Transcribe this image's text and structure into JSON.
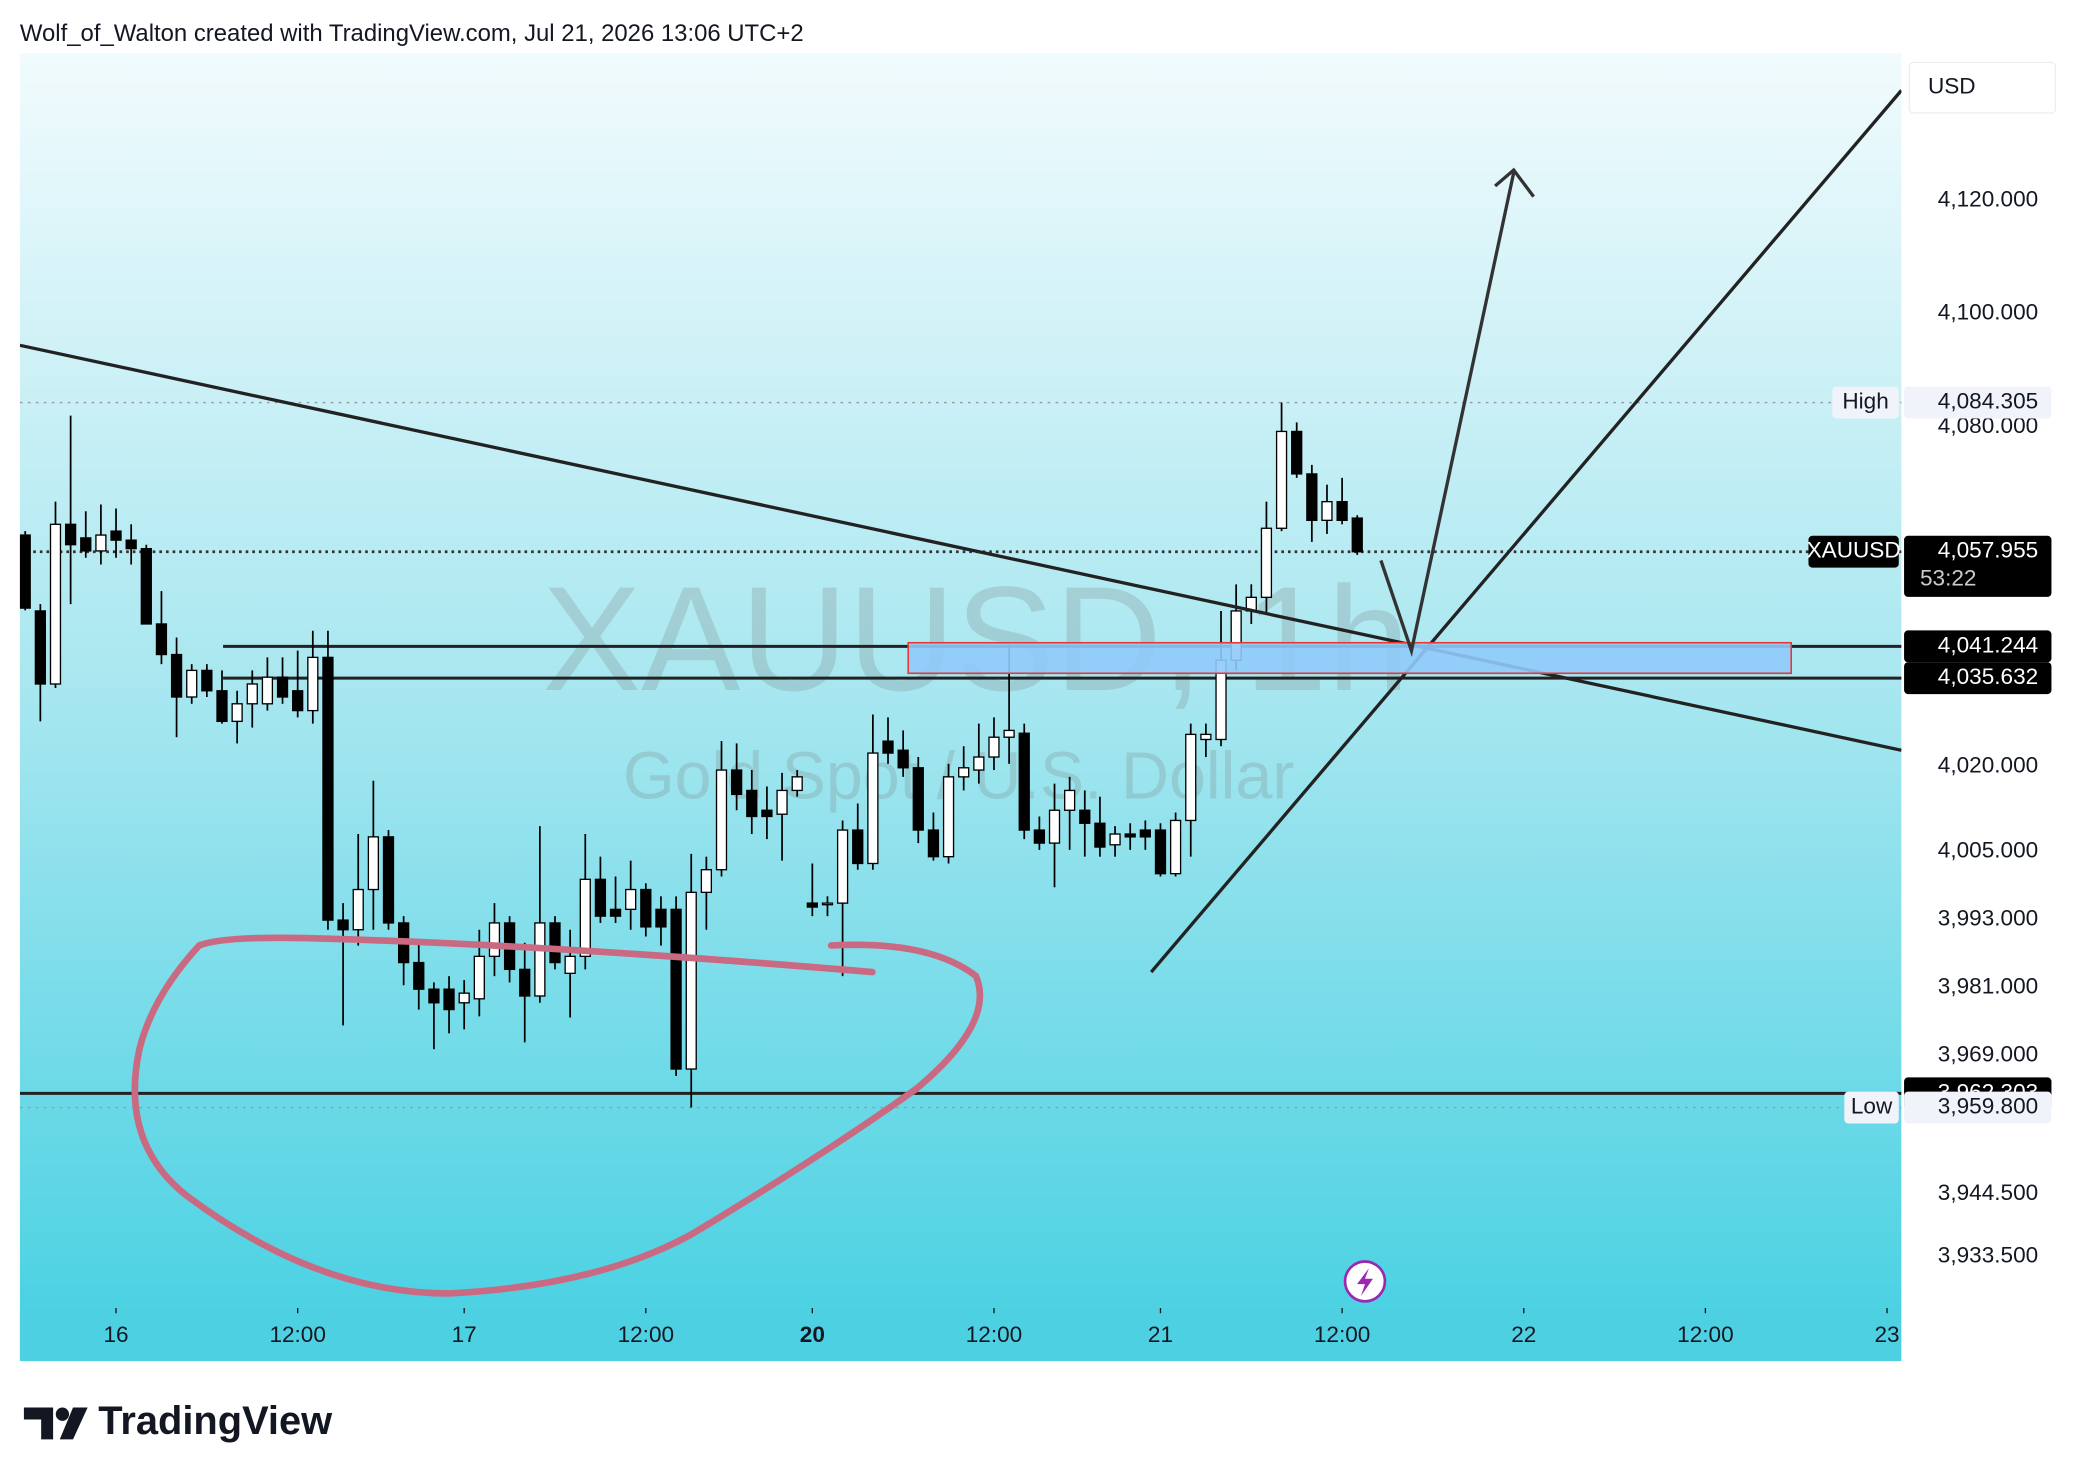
{
  "header": "Wolf_of_Walton created with TradingView.com, Jul 21, 2026 13:06 UTC+2",
  "brand": "TradingView",
  "chart_data": {
    "type": "candlestick",
    "title": "XAUUSD, 1h",
    "subtitle": "Gold Spot / U.S. Dollar",
    "currency": "USD",
    "up_color": "#ffffff",
    "down_color": "#000000",
    "open": [
      4060.9,
      4047.5,
      4034.6,
      4062.8,
      4060.4,
      4058.1,
      4061.6,
      4060.0,
      4058.5,
      4045.2,
      4039.8,
      4032.3,
      4037.0,
      4033.4,
      4028.0,
      4031.1,
      4031.1,
      4035.8,
      4033.4,
      4029.9,
      4039.3,
      3992.9,
      3991.2,
      3998.3,
      4007.6,
      3992.4,
      3985.4,
      3980.7,
      3980.7,
      3978.3,
      3979.0,
      3986.5,
      3992.4,
      3984.2,
      3979.5,
      3992.4,
      3983.5,
      3986.5,
      4000.1,
      3994.8,
      3994.8,
      3998.3,
      3994.8,
      3994.8,
      3966.6,
      3997.8,
      4001.8,
      4019.4,
      4015.8,
      4012.3,
      4011.6,
      4015.8,
      3995.9,
      3995.9,
      3995.9,
      4008.8,
      4002.9,
      4024.5,
      4022.9,
      4019.8,
      4008.8,
      4004.1,
      4018.2,
      4019.4,
      4021.7,
      4025.2,
      4025.9,
      4008.8,
      4006.5,
      4012.3,
      4012.3,
      4010.0,
      4006.2,
      4008.1,
      4008.8,
      4008.8,
      4001.1,
      4010.5,
      4024.8,
      4024.8,
      4038.8,
      4047.5,
      4049.9,
      4062.1,
      4079.2,
      4071.7,
      4063.5,
      4066.8,
      4063.9
    ],
    "high": [
      4061.6,
      4048.7,
      4066.8,
      4082.0,
      4065.1,
      4066.3,
      4065.6,
      4062.8,
      4059.2,
      4051.0,
      4042.8,
      4038.1,
      4038.1,
      4037.0,
      4033.4,
      4037.0,
      4039.3,
      4039.3,
      4040.5,
      4044.0,
      4044.0,
      3995.9,
      4008.1,
      4017.5,
      4008.8,
      3993.6,
      3988.9,
      3981.9,
      3983.0,
      3982.3,
      3991.2,
      3995.9,
      3993.6,
      3988.9,
      4009.5,
      3993.6,
      3991.2,
      4008.1,
      4004.1,
      4000.6,
      4003.4,
      3999.4,
      3997.1,
      3997.1,
      4004.6,
      4004.1,
      4024.5,
      4024.1,
      4019.4,
      4016.5,
      4018.9,
      4019.4,
      4002.9,
      3997.1,
      4010.5,
      4013.5,
      4029.2,
      4028.7,
      4026.4,
      4021.7,
      4011.9,
      4020.5,
      4023.6,
      4027.6,
      4028.7,
      4041.6,
      4027.6,
      4011.2,
      4017.0,
      4018.2,
      4015.8,
      4014.7,
      4009.5,
      4010.0,
      4010.5,
      4010.0,
      4011.9,
      4027.6,
      4027.6,
      4047.5,
      4052.2,
      4052.2,
      4066.8,
      4084.305,
      4080.8,
      4073.3,
      4069.8,
      4071.0,
      4064.4
    ],
    "low": [
      4047.6,
      4028.0,
      4033.9,
      4048.7,
      4056.9,
      4055.7,
      4056.9,
      4055.7,
      4045.2,
      4038.1,
      4025.2,
      4031.1,
      4032.3,
      4027.6,
      4024.1,
      4026.9,
      4029.9,
      4031.1,
      4028.7,
      4027.6,
      3991.2,
      3974.3,
      3988.4,
      3991.2,
      3991.2,
      3981.4,
      3977.1,
      3970.1,
      3972.9,
      3973.6,
      3975.9,
      3983.0,
      3981.9,
      3971.3,
      3978.3,
      3984.2,
      3975.7,
      3984.2,
      3992.4,
      3992.4,
      3991.2,
      3990.0,
      3988.4,
      3965.4,
      3959.8,
      3991.2,
      4000.6,
      4012.3,
      4008.1,
      4007.2,
      4003.4,
      4014.7,
      3993.6,
      3993.6,
      3983.0,
      4001.8,
      4001.8,
      4020.5,
      4018.2,
      4006.5,
      4003.4,
      4002.9,
      4015.8,
      4017.0,
      4019.4,
      4020.5,
      4007.2,
      4005.3,
      3998.7,
      4005.3,
      4004.1,
      4004.1,
      4004.1,
      4005.3,
      4005.3,
      4000.6,
      4000.6,
      4004.1,
      4021.7,
      4023.6,
      4037.0,
      4045.2,
      4047.0,
      4061.6,
      4071.0,
      4059.7,
      4061.1,
      4062.8,
      4057.4
    ],
    "close": [
      4048.0,
      4034.6,
      4062.8,
      4059.2,
      4058.1,
      4060.9,
      4060.0,
      4058.5,
      4045.2,
      4039.8,
      4032.3,
      4037.0,
      4033.4,
      4028.0,
      4031.1,
      4034.6,
      4035.8,
      4032.3,
      4029.9,
      4039.3,
      3992.9,
      3991.2,
      3998.3,
      4007.6,
      3992.4,
      3985.4,
      3980.7,
      3978.3,
      3977.1,
      3980.0,
      3986.5,
      3992.4,
      3984.2,
      3979.5,
      3992.4,
      3985.4,
      3986.5,
      4000.1,
      3993.6,
      3993.6,
      3998.3,
      3991.7,
      3991.7,
      3966.6,
      3997.8,
      4001.8,
      4019.4,
      4015.1,
      4011.2,
      4011.2,
      4015.8,
      4018.2,
      3995.2,
      3995.9,
      4008.8,
      4002.9,
      4022.4,
      4022.4,
      4019.8,
      4008.8,
      4004.1,
      4018.2,
      4019.8,
      4021.7,
      4025.2,
      4026.4,
      4008.8,
      4006.5,
      4012.3,
      4015.8,
      4010.0,
      4005.8,
      4008.1,
      4007.6,
      4007.6,
      4001.1,
      4010.5,
      4025.7,
      4025.7,
      4038.8,
      4047.5,
      4049.9,
      4062.1,
      4079.2,
      4071.7,
      4063.5,
      4066.8,
      4063.5,
      4057.955
    ],
    "ylim": [
      3924.4,
      4146.0
    ],
    "yticks": [
      {
        "value": 4120,
        "label": "4,120.000"
      },
      {
        "value": 4100,
        "label": "4,100.000"
      },
      {
        "value": 4080,
        "label": "4,080.000"
      },
      {
        "value": 4020,
        "label": "4,020.000"
      },
      {
        "value": 4005,
        "label": "4,005.000"
      },
      {
        "value": 3993,
        "label": "3,993.000"
      },
      {
        "value": 3981,
        "label": "3,981.000"
      },
      {
        "value": 3969,
        "label": "3,969.000"
      },
      {
        "value": 3944.5,
        "label": "3,944.500"
      },
      {
        "value": 3933.5,
        "label": "3,933.500"
      }
    ],
    "xlim": [
      -0.35,
      123.95
    ],
    "xticks": [
      {
        "value": 6,
        "label": "16"
      },
      {
        "value": 18,
        "label": "12:00"
      },
      {
        "value": 29,
        "label": "17"
      },
      {
        "value": 41,
        "label": "12:00"
      },
      {
        "value": 52,
        "label": "20"
      },
      {
        "value": 64,
        "label": "12:00"
      },
      {
        "value": 75,
        "label": "21"
      },
      {
        "value": 87,
        "label": "12:00"
      },
      {
        "value": 99,
        "label": "22"
      },
      {
        "value": 111,
        "label": "12:00"
      },
      {
        "value": 123,
        "label": "23"
      }
    ],
    "levels": [
      {
        "value": 4041.244,
        "label": "4,041.244"
      },
      {
        "value": 4035.632,
        "label": "4,035.632"
      },
      {
        "value": 3962.303,
        "label": "3,962.303"
      }
    ],
    "markers": [
      {
        "name": "High",
        "value": 4084.305,
        "label": "4,084.305"
      },
      {
        "name": "XAUUSD",
        "value": 4057.955,
        "label": "4,057.955",
        "countdown": "53:22"
      },
      {
        "name": "Low",
        "value": 3959.8,
        "label": "3,959.800"
      }
    ]
  }
}
